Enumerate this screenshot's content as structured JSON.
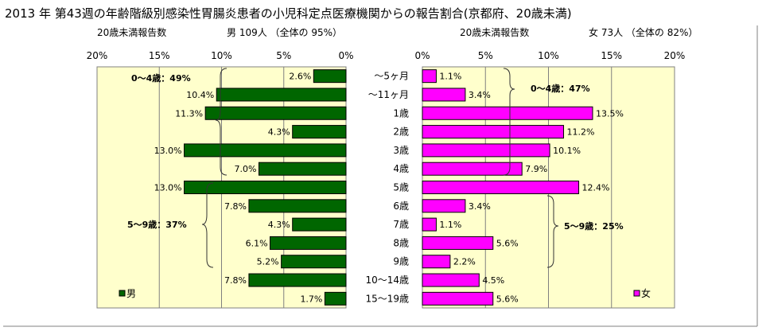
{
  "title": "2013 年 第43週の年齢階級別感染性胃腸炎患者の小児科定点医療機関からの報告割合(京都府、20歳未満)",
  "chart_data": [
    {
      "type": "bar",
      "orientation": "horizontal-reversed",
      "header_left": "20歳未満報告数",
      "header_right": "男  109人 （全体の  95%）",
      "categories": [
        "～5ヶ月",
        "～11ヶ月",
        "1歳",
        "2歳",
        "3歳",
        "4歳",
        "5歳",
        "6歳",
        "7歳",
        "8歳",
        "9歳",
        "10～14歳",
        "15～19歳"
      ],
      "series": [
        {
          "name": "男",
          "color": "#006600",
          "values": [
            2.6,
            10.4,
            11.3,
            4.3,
            13.0,
            7.0,
            13.0,
            7.8,
            4.3,
            6.1,
            5.2,
            7.8,
            1.7
          ],
          "labels": [
            "2.6%",
            "10.4%",
            "11.3%",
            "4.3%",
            "13.0%",
            "7.0%",
            "13.0%",
            "7.8%",
            "4.3%",
            "6.1%",
            "5.2%",
            "7.8%",
            "1.7%"
          ]
        }
      ],
      "xlim": [
        0,
        20
      ],
      "ticks": [
        "20%",
        "15%",
        "10%",
        "5%",
        "0%"
      ],
      "plot_background": "#FFFFCC",
      "grid": true,
      "legend": "bottom-left",
      "annotations": [
        "0～4歳：49%",
        "5～9歳：37%"
      ]
    },
    {
      "type": "bar",
      "orientation": "horizontal",
      "header_left": "20歳未満報告数",
      "header_right": "女  73人 （全体の  82%）",
      "categories": [
        "～5ヶ月",
        "～11ヶ月",
        "1歳",
        "2歳",
        "3歳",
        "4歳",
        "5歳",
        "6歳",
        "7歳",
        "8歳",
        "9歳",
        "10～14歳",
        "15～19歳"
      ],
      "series": [
        {
          "name": "女",
          "color": "#FF00FF",
          "values": [
            1.1,
            3.4,
            13.5,
            11.2,
            10.1,
            7.9,
            12.4,
            3.4,
            1.1,
            5.6,
            2.2,
            4.5,
            5.6
          ],
          "labels": [
            "1.1%",
            "3.4%",
            "13.5%",
            "11.2%",
            "10.1%",
            "7.9%",
            "12.4%",
            "3.4%",
            "1.1%",
            "5.6%",
            "2.2%",
            "4.5%",
            "5.6%"
          ]
        }
      ],
      "xlim": [
        0,
        20
      ],
      "ticks": [
        "0%",
        "5%",
        "10%",
        "15%",
        "20%"
      ],
      "plot_background": "#FFFFCC",
      "grid": true,
      "legend": "bottom-right",
      "annotations": [
        "0～4歳：47%",
        "5～9歳：25%"
      ]
    }
  ]
}
